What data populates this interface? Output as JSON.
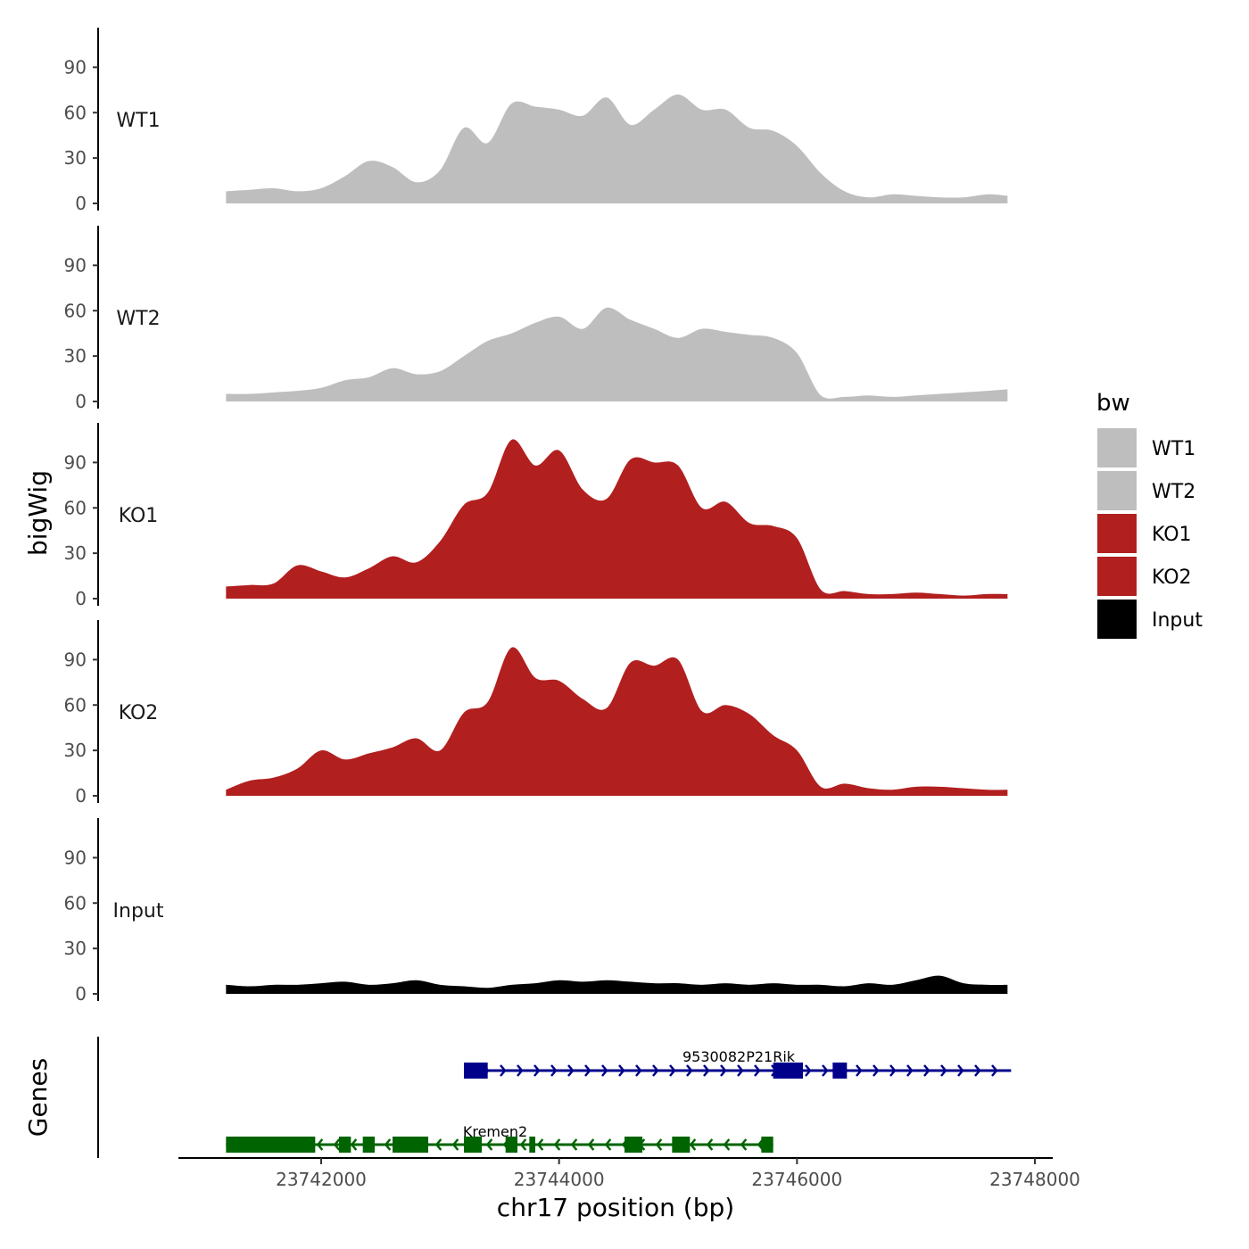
{
  "chart_data": {
    "type": "area",
    "ylabel": "bigWig",
    "xlabel": "chr17 position (bp)",
    "xlim": [
      23740800,
      23748150
    ],
    "ylim": [
      0,
      115
    ],
    "y_ticks": [
      0,
      30,
      60,
      90
    ],
    "x_ticks": [
      23742000,
      23744000,
      23746000,
      23748000
    ],
    "x_tick_labels": [
      "23742000",
      "23744000",
      "23746000",
      "23748000"
    ],
    "y_tick_labels": [
      "0",
      "30",
      "60",
      "90"
    ],
    "legend": {
      "title": "bw",
      "position": "right",
      "entries": [
        {
          "label": "WT1",
          "color": "#bebebe"
        },
        {
          "label": "WT2",
          "color": "#bebebe"
        },
        {
          "label": "KO1",
          "color": "#b21f1f"
        },
        {
          "label": "KO2",
          "color": "#b21f1f"
        },
        {
          "label": "Input",
          "color": "#000000"
        }
      ]
    },
    "track_x": [
      23741200,
      23741400,
      23741600,
      23741800,
      23742000,
      23742200,
      23742400,
      23742600,
      23742800,
      23743000,
      23743200,
      23743400,
      23743600,
      23743800,
      23744000,
      23744200,
      23744400,
      23744600,
      23744800,
      23745000,
      23745200,
      23745400,
      23745600,
      23745800,
      23746000,
      23746200,
      23746400,
      23746600,
      23746800,
      23747000,
      23747200,
      23747400,
      23747600,
      23747770
    ],
    "series": [
      {
        "name": "WT1",
        "color": "#bebebe",
        "values": [
          8,
          9,
          10,
          8,
          10,
          18,
          28,
          24,
          14,
          22,
          50,
          40,
          66,
          64,
          62,
          58,
          70,
          52,
          62,
          72,
          62,
          62,
          50,
          48,
          38,
          20,
          8,
          4,
          6,
          5,
          4,
          4,
          6,
          5
        ]
      },
      {
        "name": "WT2",
        "color": "#bebebe",
        "values": [
          5,
          5,
          6,
          7,
          9,
          14,
          16,
          22,
          18,
          20,
          30,
          40,
          45,
          52,
          56,
          48,
          62,
          54,
          48,
          42,
          48,
          46,
          44,
          42,
          32,
          4,
          3,
          4,
          3,
          4,
          5,
          6,
          7,
          8
        ]
      },
      {
        "name": "KO1",
        "color": "#b21f1f",
        "values": [
          8,
          9,
          10,
          22,
          18,
          14,
          20,
          28,
          24,
          38,
          62,
          70,
          105,
          88,
          98,
          72,
          66,
          92,
          90,
          88,
          60,
          64,
          50,
          48,
          40,
          6,
          5,
          3,
          3,
          4,
          3,
          2,
          3,
          3
        ]
      },
      {
        "name": "KO2",
        "color": "#b21f1f",
        "values": [
          4,
          10,
          12,
          18,
          30,
          24,
          28,
          32,
          38,
          30,
          55,
          62,
          98,
          78,
          76,
          64,
          58,
          88,
          86,
          90,
          56,
          60,
          54,
          40,
          30,
          6,
          8,
          5,
          4,
          6,
          6,
          5,
          4,
          4
        ]
      },
      {
        "name": "Input",
        "color": "#000000",
        "values": [
          6,
          5,
          6,
          6,
          7,
          8,
          6,
          7,
          9,
          6,
          5,
          4,
          6,
          7,
          9,
          8,
          9,
          8,
          7,
          7,
          6,
          7,
          6,
          7,
          6,
          6,
          5,
          7,
          6,
          9,
          12,
          7,
          6,
          6
        ]
      }
    ],
    "genes": {
      "panel_label": "Genes",
      "items": [
        {
          "name": "9530082P21Rik",
          "strand": "+",
          "color": "#00008b",
          "start": 23743200,
          "end": 23747800,
          "exons": [
            [
              23743200,
              23743400
            ],
            [
              23745800,
              23746050
            ],
            [
              23746300,
              23746420
            ]
          ]
        },
        {
          "name": "Kremen2",
          "strand": "-",
          "color": "#006400",
          "start": 23741200,
          "end": 23745800,
          "exons": [
            [
              23741200,
              23741950
            ],
            [
              23742150,
              23742250
            ],
            [
              23742350,
              23742450
            ],
            [
              23742600,
              23742900
            ],
            [
              23743200,
              23743350
            ],
            [
              23743550,
              23743650
            ],
            [
              23743750,
              23743800
            ],
            [
              23744550,
              23744700
            ],
            [
              23744950,
              23745100
            ],
            [
              23745700,
              23745800
            ]
          ]
        }
      ]
    }
  }
}
